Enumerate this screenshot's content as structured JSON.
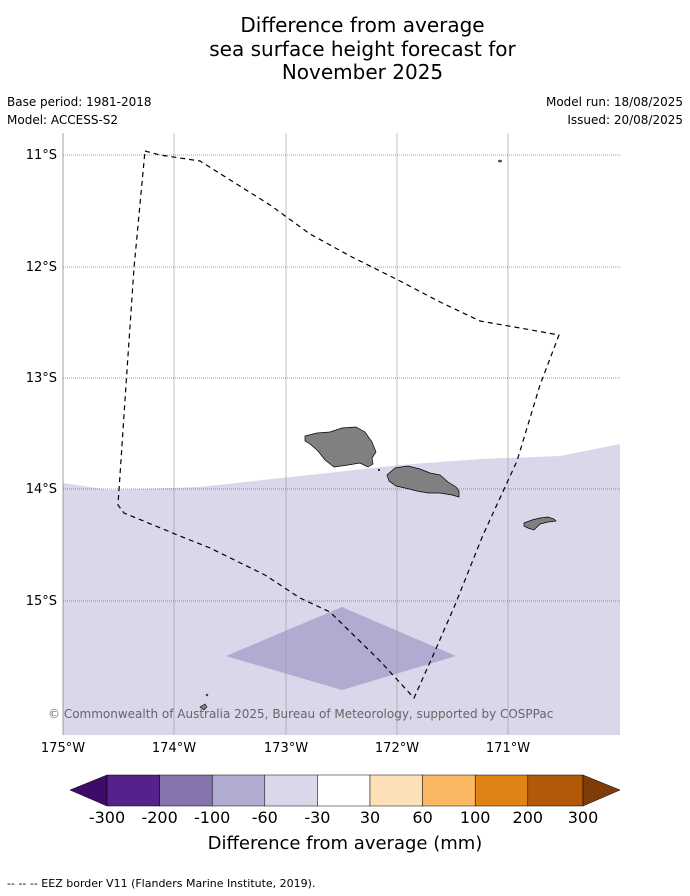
{
  "title_lines": [
    "Difference from average",
    "sea surface height forecast for",
    "November 2025"
  ],
  "meta": {
    "base_period": "Base period: 1981-2018",
    "model": "Model: ACCESS-S2",
    "model_run": "Model run: 18/08/2025",
    "issued": "Issued: 20/08/2025"
  },
  "map": {
    "lat_labels": [
      "11°S",
      "12°S",
      "13°S",
      "14°S",
      "15°S"
    ],
    "lon_labels": [
      "175°W",
      "174°W",
      "173°W",
      "172°W",
      "171°W"
    ],
    "extent": {
      "lon": [
        -175,
        -170
      ],
      "lat": [
        -16.2,
        -10.8
      ]
    },
    "anomaly_fill_colors": {
      "-60_to_-30": "#d8d8ea",
      "-100_to_-60": "#b1abd2",
      "-30_to_30": "#ffffff"
    },
    "land_color": "#808080",
    "copyright": "© Commonwealth of Australia 2025, Bureau of Meteorology, supported by COSPPac"
  },
  "colorbar": {
    "title": "Difference from average (mm)",
    "ticks": [
      "-300",
      "-200",
      "-100",
      "-60",
      "-30",
      "30",
      "60",
      "100",
      "200",
      "300"
    ],
    "colors": [
      "#3f0a6b",
      "#56218a",
      "#8574ae",
      "#b1abd2",
      "#d8d8ea",
      "#ffffff",
      "#fde0b8",
      "#fbb762",
      "#e08214",
      "#b35806",
      "#7f3b08"
    ]
  },
  "footer": "--  --  -- EEZ border V11 (Flanders Marine Institute, 2019)."
}
